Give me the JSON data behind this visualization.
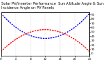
{
  "title": "Solar PV/Inverter Performance  Sun Altitude Angle & Sun Incidence Angle on PV Panels",
  "bg_color": "#ffffff",
  "grid_color": "#bbbbbb",
  "blue_curve": {
    "color": "#0000ff"
  },
  "red_curve": {
    "color": "#ff0000"
  },
  "xlim": [
    0,
    24
  ],
  "ylim": [
    -5,
    95
  ],
  "xtick_values": [
    0,
    4,
    8,
    12,
    16,
    20,
    24
  ],
  "xtick_labels": [
    "0",
    "4",
    "8",
    "12",
    "16",
    "20",
    "24"
  ],
  "yticks_right": [
    0,
    10,
    20,
    30,
    40,
    50,
    60,
    70,
    80,
    90
  ],
  "title_fontsize": 3.8,
  "tick_fontsize": 3.2,
  "blue_min": 35,
  "blue_max": 92,
  "red_min": 5,
  "red_max": 55
}
